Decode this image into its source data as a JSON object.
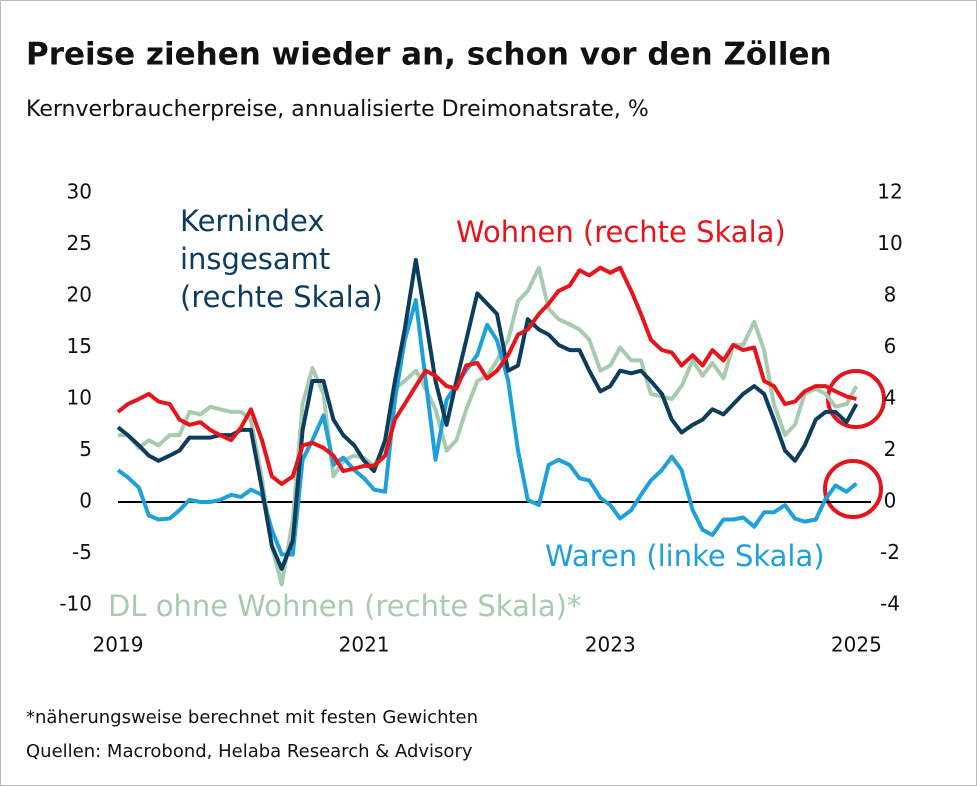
{
  "chart_data": {
    "type": "line",
    "title": "Preise ziehen wieder an, schon vor den Zöllen",
    "subtitle": "Kernverbraucherpreise, annualisierte Dreimonatsrate, %",
    "footnotes": [
      "*näherungsweise berechnet mit festen Gewichten",
      "Quellen: Macrobond, Helaba Research & Advisory"
    ],
    "x": [
      2019,
      2019.08,
      2019.17,
      2019.25,
      2019.33,
      2019.42,
      2019.5,
      2019.58,
      2019.67,
      2019.75,
      2019.83,
      2019.92,
      2020,
      2020.08,
      2020.17,
      2020.25,
      2020.33,
      2020.42,
      2020.5,
      2020.58,
      2020.67,
      2020.75,
      2020.83,
      2020.92,
      2021,
      2021.08,
      2021.17,
      2021.25,
      2021.33,
      2021.42,
      2021.5,
      2021.58,
      2021.67,
      2021.75,
      2021.83,
      2021.92,
      2022,
      2022.08,
      2022.17,
      2022.25,
      2022.33,
      2022.42,
      2022.5,
      2022.58,
      2022.67,
      2022.75,
      2022.83,
      2022.92,
      2023,
      2023.08,
      2023.17,
      2023.25,
      2023.33,
      2023.42,
      2023.5,
      2023.58,
      2023.67,
      2023.75,
      2023.83,
      2023.92,
      2024,
      2024.08,
      2024.17,
      2024.25,
      2024.33,
      2024.42,
      2024.5,
      2024.58,
      2024.67,
      2024.75,
      2024.83,
      2024.92,
      2025
    ],
    "xlim": [
      2019,
      2025.2
    ],
    "xticks": [
      2019,
      2021,
      2023,
      2025
    ],
    "ylim": [
      -10,
      30
    ],
    "yticks": [
      -10,
      -5,
      0,
      5,
      10,
      15,
      20,
      25,
      30
    ],
    "y2lim": [
      -4,
      12
    ],
    "y2ticks": [
      -4,
      -2,
      0,
      2,
      4,
      6,
      8,
      10,
      12
    ],
    "series": [
      {
        "name": "DL ohne Wohnen (rechte Skala)*",
        "color": "#a6cbb0",
        "axis": "y2",
        "values": [
          2.6,
          2.6,
          2.1,
          2.4,
          2.2,
          2.6,
          2.6,
          3.5,
          3.4,
          3.7,
          3.6,
          3.5,
          3.5,
          3.2,
          0.9,
          -1.7,
          -3.2,
          -0.7,
          3.8,
          5.2,
          4.2,
          1.0,
          1.6,
          1.8,
          1.7,
          1.4,
          2.2,
          4.4,
          4.7,
          5.1,
          4.4,
          3.6,
          2.0,
          2.4,
          3.6,
          4.7,
          4.9,
          5.5,
          6.3,
          7.8,
          8.2,
          9.1,
          7.5,
          7.1,
          6.9,
          6.7,
          6.3,
          5.1,
          5.3,
          6.0,
          5.5,
          5.5,
          4.2,
          4.1,
          4.0,
          4.5,
          5.5,
          4.9,
          5.4,
          4.8,
          6.1,
          6.1,
          7.0,
          5.9,
          3.8,
          2.6,
          3.0,
          4.2,
          4.4,
          4.2,
          3.7,
          3.8,
          4.5
        ]
      },
      {
        "name": "Waren (linke Skala)",
        "color": "#1ea0dc",
        "axis": "y",
        "values": [
          3.1,
          2.4,
          1.4,
          -1.3,
          -1.7,
          -1.6,
          -0.8,
          0.2,
          0,
          0,
          0.2,
          0.7,
          0.5,
          1.2,
          0.7,
          -2.7,
          -5.1,
          -5.1,
          4.1,
          6.0,
          8.4,
          3.6,
          4.3,
          3.1,
          2.3,
          1.2,
          1.0,
          9.9,
          15.7,
          19.6,
          11.8,
          4.1,
          9.9,
          11.4,
          12.8,
          14.3,
          17.2,
          15.7,
          11.8,
          5.0,
          0.2,
          -0.3,
          3.6,
          4.1,
          3.6,
          2.3,
          2.1,
          0.4,
          -0.3,
          -1.6,
          -0.8,
          0.7,
          2.1,
          3.1,
          4.4,
          3.1,
          -0.8,
          -2.7,
          -3.2,
          -1.7,
          -1.7,
          -1.5,
          -2.4,
          -1.0,
          -1.0,
          -0.3,
          -1.6,
          -1.9,
          -1.7,
          0.3,
          1.6,
          1.0,
          1.8
        ]
      },
      {
        "name": "Kernindex insgesamt (rechte Skala)",
        "color": "#0d3d5c",
        "axis": "y2",
        "values": [
          2.9,
          2.6,
          2.2,
          1.8,
          1.6,
          1.8,
          2.0,
          2.5,
          2.5,
          2.5,
          2.6,
          2.6,
          2.8,
          2.8,
          0.5,
          -1.7,
          -2.6,
          -1.5,
          2.8,
          4.7,
          4.7,
          3.2,
          2.6,
          2.2,
          1.6,
          1.2,
          2.4,
          4.7,
          6.7,
          9.4,
          7.1,
          4.7,
          3.0,
          4.7,
          6.3,
          8.1,
          7.7,
          7.3,
          5.1,
          5.3,
          7.1,
          6.7,
          6.5,
          6.1,
          5.9,
          5.9,
          5.1,
          4.3,
          4.5,
          5.1,
          5.0,
          5.1,
          4.7,
          4.2,
          3.2,
          2.7,
          3.0,
          3.2,
          3.6,
          3.4,
          3.8,
          4.2,
          4.5,
          4.2,
          3.2,
          2.0,
          1.6,
          2.2,
          3.2,
          3.5,
          3.5,
          3.1,
          3.8
        ]
      },
      {
        "name": "Wohnen (rechte Skala)",
        "color": "#e8141c",
        "axis": "y2",
        "values": [
          3.5,
          3.8,
          4.0,
          4.2,
          3.9,
          3.8,
          3.2,
          3.0,
          3.1,
          2.8,
          2.6,
          2.4,
          2.9,
          3.6,
          2.4,
          1.0,
          0.7,
          1.0,
          2.2,
          2.3,
          2.1,
          1.8,
          1.2,
          1.3,
          1.4,
          1.4,
          1.8,
          3.2,
          3.8,
          4.5,
          5.1,
          4.9,
          4.5,
          4.4,
          5.3,
          5.4,
          4.8,
          5.1,
          5.7,
          6.5,
          6.7,
          7.3,
          7.7,
          8.2,
          8.4,
          9.0,
          8.8,
          9.1,
          8.9,
          9.1,
          8.2,
          7.3,
          6.3,
          5.9,
          5.8,
          5.3,
          5.7,
          5.3,
          5.9,
          5.5,
          6.1,
          5.9,
          6.0,
          4.7,
          4.5,
          3.8,
          3.9,
          4.3,
          4.5,
          4.5,
          4.3,
          4.1,
          4.0
        ]
      }
    ]
  }
}
